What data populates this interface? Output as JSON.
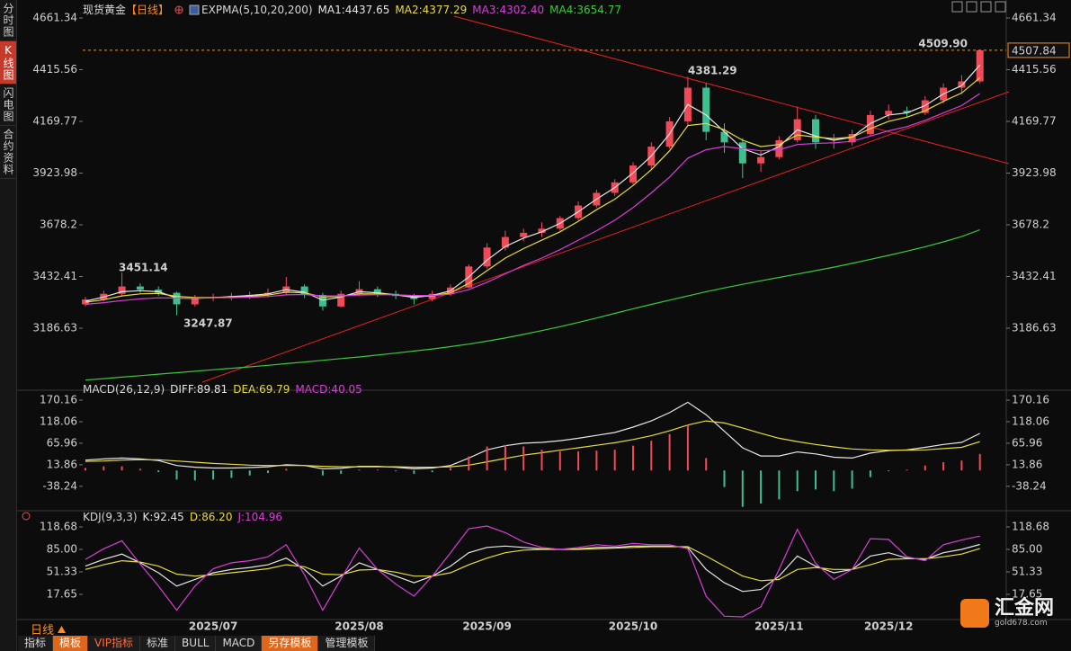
{
  "sidebar": [
    "分时图",
    "K线图",
    "闪电图",
    "合约资料"
  ],
  "chart_data": [
    {
      "type": "candlestick",
      "title": "现货黄金",
      "subtitle": "【日线】",
      "indicator": "EXPMA(5,10,20,200)",
      "categories": [
        null,
        null,
        null,
        null,
        null,
        null,
        null,
        "2025/07",
        null,
        null,
        null,
        null,
        null,
        null,
        null,
        "2025/08",
        null,
        null,
        null,
        null,
        null,
        null,
        "2025/09",
        null,
        null,
        null,
        null,
        null,
        null,
        null,
        "2025/10",
        null,
        null,
        null,
        null,
        null,
        null,
        null,
        "2025/11",
        null,
        null,
        null,
        null,
        null,
        "2025/12",
        null,
        null,
        null,
        null,
        null
      ],
      "candles": {
        "open": [
          3300,
          3323,
          3350,
          3385,
          3370,
          3355,
          3300,
          3330,
          3335,
          3340,
          3345,
          3355,
          3385,
          3345,
          3290,
          3350,
          3372,
          3350,
          3340,
          3325,
          3350,
          3380,
          3480,
          3570,
          3620,
          3640,
          3660,
          3710,
          3770,
          3830,
          3880,
          3960,
          4050,
          4170,
          4330,
          4120,
          4070,
          3970,
          4000,
          4080,
          4180,
          4070,
          4070,
          4110,
          4200,
          4220,
          4210,
          4270,
          4330,
          4360
        ],
        "high": [
          3335,
          3365,
          3451.14,
          3400,
          3385,
          3360,
          3345,
          3350,
          3355,
          3360,
          3375,
          3430,
          3395,
          3355,
          3365,
          3410,
          3385,
          3365,
          3350,
          3365,
          3395,
          3490,
          3590,
          3650,
          3660,
          3690,
          3720,
          3790,
          3845,
          3895,
          3975,
          4070,
          4190,
          4381.29,
          4350,
          4160,
          4090,
          4030,
          4100,
          4240,
          4200,
          4110,
          4130,
          4220,
          4250,
          4240,
          4290,
          4350,
          4390,
          4509.9
        ],
        "low": [
          3290,
          3315,
          3340,
          3355,
          3340,
          3247.87,
          3290,
          3315,
          3320,
          3325,
          3335,
          3345,
          3330,
          3270,
          3285,
          3340,
          3335,
          3325,
          3300,
          3315,
          3340,
          3375,
          3470,
          3555,
          3600,
          3620,
          3650,
          3700,
          3760,
          3815,
          3870,
          3945,
          4040,
          4150,
          4080,
          4020,
          3900,
          3930,
          3990,
          4070,
          4040,
          4040,
          4055,
          4100,
          4180,
          4190,
          4200,
          4255,
          4300,
          4350
        ],
        "close": [
          3323,
          3350,
          3385,
          3370,
          3355,
          3300,
          3330,
          3335,
          3340,
          3345,
          3355,
          3385,
          3345,
          3290,
          3350,
          3372,
          3350,
          3340,
          3325,
          3350,
          3380,
          3480,
          3570,
          3620,
          3640,
          3660,
          3710,
          3770,
          3830,
          3880,
          3960,
          4050,
          4170,
          4330,
          4120,
          4070,
          3970,
          4000,
          4080,
          4180,
          4070,
          4070,
          4110,
          4200,
          4220,
          4210,
          4270,
          4330,
          4360,
          4507.84
        ]
      },
      "up_color": "#f04a58",
      "down_color": "#3fbf8f",
      "last_color": "#ff8c1a",
      "series": [
        {
          "name": "MA1:4437.65",
          "color": "#e6e6e6",
          "values": [
            3315,
            3335,
            3360,
            3365,
            3360,
            3330,
            3328,
            3332,
            3337,
            3342,
            3350,
            3370,
            3358,
            3320,
            3335,
            3360,
            3355,
            3345,
            3333,
            3342,
            3365,
            3430,
            3510,
            3575,
            3615,
            3645,
            3685,
            3740,
            3800,
            3855,
            3925,
            4005,
            4110,
            4250,
            4200,
            4120,
            4040,
            4010,
            4050,
            4130,
            4100,
            4080,
            4095,
            4160,
            4200,
            4210,
            4245,
            4300,
            4340,
            4437.65
          ]
        },
        {
          "name": "MA2:4377.29",
          "color": "#e8dc3a",
          "values": [
            3310,
            3322,
            3340,
            3350,
            3352,
            3338,
            3333,
            3333,
            3335,
            3338,
            3344,
            3358,
            3355,
            3335,
            3338,
            3350,
            3350,
            3346,
            3338,
            3340,
            3355,
            3400,
            3460,
            3520,
            3565,
            3605,
            3645,
            3695,
            3750,
            3800,
            3865,
            3940,
            4030,
            4150,
            4160,
            4130,
            4080,
            4050,
            4060,
            4105,
            4095,
            4088,
            4095,
            4135,
            4170,
            4190,
            4220,
            4265,
            4305,
            4377.29
          ]
        },
        {
          "name": "MA3:4302.40",
          "color": "#d63fd6",
          "values": [
            3300,
            3308,
            3318,
            3326,
            3331,
            3330,
            3330,
            3331,
            3332,
            3334,
            3337,
            3345,
            3347,
            3340,
            3340,
            3344,
            3346,
            3345,
            3342,
            3342,
            3348,
            3370,
            3405,
            3445,
            3485,
            3520,
            3560,
            3605,
            3650,
            3700,
            3760,
            3830,
            3905,
            3995,
            4035,
            4050,
            4040,
            4030,
            4035,
            4060,
            4065,
            4068,
            4075,
            4100,
            4125,
            4145,
            4175,
            4210,
            4245,
            4302.4
          ]
        },
        {
          "name": "MA4:3654.77",
          "color": "#3cc83c",
          "values": [
            2940,
            2947,
            2954,
            2961,
            2968,
            2975,
            2982,
            2989,
            2996,
            3003,
            3010,
            3018,
            3026,
            3034,
            3042,
            3050,
            3059,
            3068,
            3078,
            3088,
            3099,
            3111,
            3125,
            3140,
            3157,
            3175,
            3194,
            3214,
            3235,
            3257,
            3279,
            3300,
            3320,
            3340,
            3360,
            3378,
            3395,
            3412,
            3428,
            3444,
            3460,
            3477,
            3495,
            3514,
            3533,
            3553,
            3574,
            3597,
            3622,
            3654.77
          ]
        }
      ],
      "annotations": [
        {
          "text": "3451.14",
          "color": "#ff5a5a"
        },
        {
          "text": "3247.87",
          "color": "#3fbf8f"
        },
        {
          "text": "4381.29",
          "color": "#ff5a5a"
        },
        {
          "text": "4509.90",
          "color": "#ff5a5a"
        }
      ],
      "ylim": [
        2900.2,
        4682.7
      ],
      "yticks": [
        4661.34,
        4415.56,
        4169.77,
        3923.98,
        3678.2,
        3432.41,
        3186.63
      ]
    },
    {
      "type": "combo",
      "indicator": "MACD(26,12,9)",
      "series": [
        {
          "name": "DIFF:89.81",
          "color": "#e6e6e6",
          "values": [
            25,
            28,
            30,
            28,
            24,
            12,
            8,
            6,
            6,
            7,
            9,
            14,
            12,
            4,
            5,
            10,
            10,
            8,
            4,
            6,
            12,
            30,
            50,
            60,
            66,
            68,
            72,
            78,
            85,
            92,
            105,
            120,
            140,
            165,
            135,
            95,
            55,
            35,
            35,
            45,
            40,
            32,
            30,
            42,
            48,
            50,
            56,
            63,
            68,
            89.81
          ]
        },
        {
          "name": "DEA:69.79",
          "color": "#e8dc3a",
          "values": [
            22,
            23,
            25,
            26,
            26,
            23,
            20,
            17,
            15,
            13,
            12,
            12,
            12,
            10,
            9,
            9,
            9,
            9,
            8,
            8,
            9,
            13,
            21,
            29,
            37,
            43,
            49,
            55,
            61,
            67,
            75,
            84,
            96,
            110,
            120,
            115,
            103,
            90,
            78,
            70,
            63,
            57,
            52,
            50,
            49,
            49,
            50,
            53,
            56,
            69.79
          ]
        },
        {
          "name": "MACD:40.05",
          "color": "#d63fd6",
          "kind": "bar",
          "up_color": "#f04a58",
          "down_color": "#3fbf8f",
          "values": [
            6,
            10,
            10,
            4,
            -4,
            -22,
            -24,
            -22,
            -18,
            -12,
            -6,
            4,
            0,
            -12,
            -8,
            2,
            2,
            -2,
            -8,
            -4,
            6,
            34,
            58,
            62,
            58,
            50,
            46,
            46,
            48,
            50,
            60,
            72,
            88,
            110,
            30,
            -40,
            -88,
            -80,
            -70,
            -50,
            -46,
            -50,
            -44,
            -16,
            -2,
            2,
            12,
            20,
            24,
            40.05
          ]
        }
      ],
      "ylim": [
        -93.1,
        185.5
      ],
      "yticks": [
        170.16,
        118.06,
        65.96,
        13.86,
        -38.24
      ]
    },
    {
      "type": "line",
      "indicator": "KDJ(9,3,3)",
      "series": [
        {
          "name": "K:92.45",
          "color": "#e6e6e6",
          "values": [
            60,
            70,
            78,
            65,
            50,
            30,
            40,
            50,
            55,
            58,
            62,
            72,
            55,
            30,
            45,
            65,
            55,
            45,
            35,
            45,
            60,
            80,
            88,
            90,
            88,
            86,
            85,
            86,
            88,
            88,
            90,
            90,
            90,
            88,
            55,
            35,
            22,
            25,
            45,
            75,
            60,
            50,
            55,
            75,
            80,
            72,
            70,
            80,
            85,
            92.45
          ]
        },
        {
          "name": "D:86.20",
          "color": "#e8dc3a",
          "values": [
            55,
            62,
            68,
            66,
            60,
            48,
            45,
            47,
            50,
            53,
            56,
            62,
            59,
            48,
            47,
            54,
            55,
            51,
            45,
            45,
            50,
            62,
            72,
            80,
            84,
            85,
            85,
            85,
            86,
            87,
            88,
            89,
            89,
            89,
            75,
            60,
            45,
            38,
            40,
            55,
            58,
            55,
            55,
            62,
            70,
            71,
            71,
            74,
            78,
            86.2
          ]
        },
        {
          "name": "J:104.96",
          "color": "#d63fd6",
          "values": [
            70,
            86,
            98,
            63,
            30,
            -6,
            30,
            56,
            65,
            68,
            74,
            92,
            47,
            -6,
            41,
            87,
            55,
            33,
            15,
            45,
            80,
            116,
            120,
            110,
            96,
            88,
            85,
            88,
            92,
            90,
            94,
            92,
            92,
            86,
            15,
            -15,
            -16,
            -1,
            55,
            115,
            64,
            40,
            55,
            101,
            100,
            74,
            68,
            92,
            99,
            104.96
          ]
        }
      ],
      "ylim": [
        -18.7,
        133.5
      ],
      "yticks": [
        118.68,
        {
          "value": 85,
          "label": "85.00"
        },
        51.33,
        17.65
      ]
    }
  ],
  "footer": {
    "period": "日线",
    "tabs": [
      "指标",
      "模板",
      "VIP指标",
      "标准",
      "BULL",
      "MACD",
      "另存模板",
      "管理模板"
    ]
  },
  "logo": {
    "name": "汇金网",
    "url": "gold678.com"
  }
}
